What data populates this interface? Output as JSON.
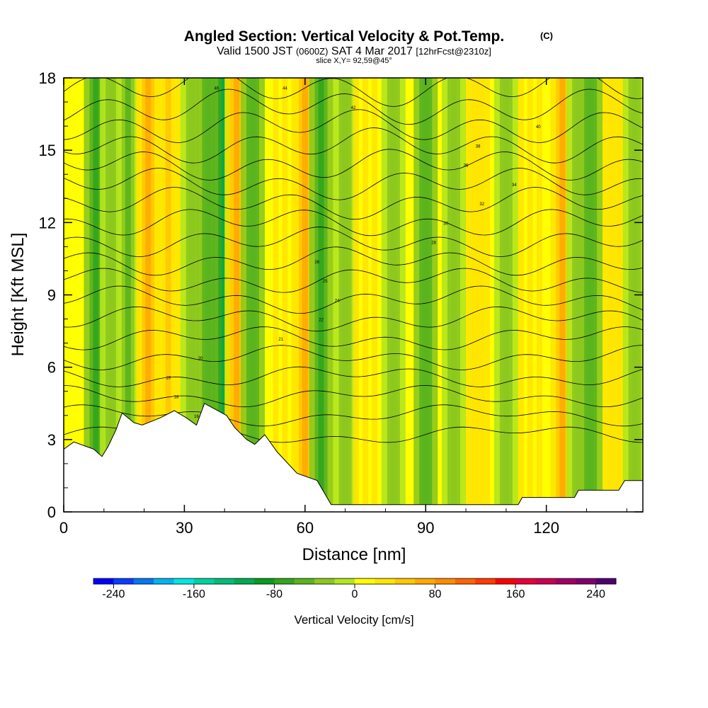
{
  "header": {
    "title_main": "Angled Section: Vertical Velocity & Pot.Temp.",
    "title_unit": "(C)",
    "valid_a": "Valid 1500 JST",
    "valid_b": "(0600Z)",
    "valid_c": "SAT 4 Mar 2017",
    "valid_d": "[12hrFcst@2310z]",
    "slice": "slice X,Y= 92,59@45°"
  },
  "chart_data": {
    "type": "heatmap",
    "xlabel": "Distance [nm]",
    "ylabel": "Height [Kft MSL]",
    "xlim": [
      0,
      144
    ],
    "ylim": [
      0,
      18
    ],
    "x_ticks": [
      "0",
      "30",
      "60",
      "90",
      "120"
    ],
    "x_tick_values": [
      0,
      30,
      60,
      90,
      120
    ],
    "y_ticks": [
      "0",
      "3",
      "6",
      "9",
      "12",
      "15",
      "18"
    ],
    "y_tick_values": [
      0,
      3,
      6,
      9,
      12,
      15,
      18
    ],
    "color_field": "Vertical Velocity [cm/s]",
    "colorbar": {
      "label": "Vertical Velocity [cm/s]",
      "min": -260,
      "max": 260,
      "step": 20,
      "tick_labels": [
        "-240",
        "-160",
        "-80",
        "0",
        "80",
        "160",
        "240"
      ],
      "tick_values": [
        -240,
        -160,
        -80,
        0,
        80,
        160,
        240
      ],
      "colors": [
        "#0000ff",
        "#0a3cff",
        "#0078f0",
        "#00b4f0",
        "#00e6e6",
        "#00d2a0",
        "#00be78",
        "#00aa50",
        "#0a9b1e",
        "#32a51e",
        "#5ab41e",
        "#8cc81e",
        "#b4e61e",
        "#ffff00",
        "#ffe600",
        "#ffc800",
        "#ffaa00",
        "#ff8c00",
        "#ff6400",
        "#ff3c00",
        "#ff0000",
        "#e6003c",
        "#c80050",
        "#a00064",
        "#80006e",
        "#50006e"
      ]
    },
    "velocity_columns": [
      {
        "x": 8,
        "value": -70
      },
      {
        "x": 12,
        "value": -40
      },
      {
        "x": 16,
        "value": -50
      },
      {
        "x": 21,
        "value": 60
      },
      {
        "x": 26,
        "value": 40
      },
      {
        "x": 32,
        "value": -40
      },
      {
        "x": 36,
        "value": -60
      },
      {
        "x": 40,
        "value": -110
      },
      {
        "x": 43,
        "value": 70
      },
      {
        "x": 47,
        "value": -60
      },
      {
        "x": 55,
        "value": 20
      },
      {
        "x": 60,
        "value": 60
      },
      {
        "x": 64,
        "value": -80
      },
      {
        "x": 70,
        "value": -30
      },
      {
        "x": 75,
        "value": 20
      },
      {
        "x": 82,
        "value": -30
      },
      {
        "x": 90,
        "value": -60
      },
      {
        "x": 97,
        "value": -40
      },
      {
        "x": 103,
        "value": 30
      },
      {
        "x": 110,
        "value": -30
      },
      {
        "x": 116,
        "value": 20
      },
      {
        "x": 124,
        "value": 70
      },
      {
        "x": 128,
        "value": -30
      },
      {
        "x": 131,
        "value": -60
      },
      {
        "x": 137,
        "value": 30
      },
      {
        "x": 142,
        "value": -40
      }
    ],
    "terrain_height_kft": [
      {
        "x": 0,
        "h": 2.6
      },
      {
        "x": 2.5,
        "h": 2.9
      },
      {
        "x": 7.5,
        "h": 2.6
      },
      {
        "x": 9.5,
        "h": 2.3
      },
      {
        "x": 11,
        "h": 2.7
      },
      {
        "x": 13,
        "h": 3.4
      },
      {
        "x": 14.5,
        "h": 4.1
      },
      {
        "x": 17.5,
        "h": 3.7
      },
      {
        "x": 19.5,
        "h": 3.6
      },
      {
        "x": 24,
        "h": 3.9
      },
      {
        "x": 27.5,
        "h": 4.2
      },
      {
        "x": 30.5,
        "h": 3.9
      },
      {
        "x": 33,
        "h": 3.6
      },
      {
        "x": 35,
        "h": 4.5
      },
      {
        "x": 40.5,
        "h": 4.0
      },
      {
        "x": 42.5,
        "h": 3.5
      },
      {
        "x": 45.5,
        "h": 3.0
      },
      {
        "x": 47.5,
        "h": 2.8
      },
      {
        "x": 50,
        "h": 3.2
      },
      {
        "x": 53,
        "h": 2.5
      },
      {
        "x": 58,
        "h": 1.6
      },
      {
        "x": 63,
        "h": 1.3
      },
      {
        "x": 66.5,
        "h": 0.3
      },
      {
        "x": 113,
        "h": 0.3
      },
      {
        "x": 114,
        "h": 0.6
      },
      {
        "x": 127,
        "h": 0.6
      },
      {
        "x": 128,
        "h": 0.9
      },
      {
        "x": 138,
        "h": 0.9
      },
      {
        "x": 139.5,
        "h": 1.3
      },
      {
        "x": 144,
        "h": 1.3
      }
    ],
    "contour_labels": [
      "15",
      "16",
      "18",
      "19",
      "20",
      "21",
      "22",
      "24",
      "25",
      "26",
      "28",
      "30",
      "32",
      "34",
      "36",
      "38",
      "40",
      "42",
      "44",
      "46"
    ]
  }
}
